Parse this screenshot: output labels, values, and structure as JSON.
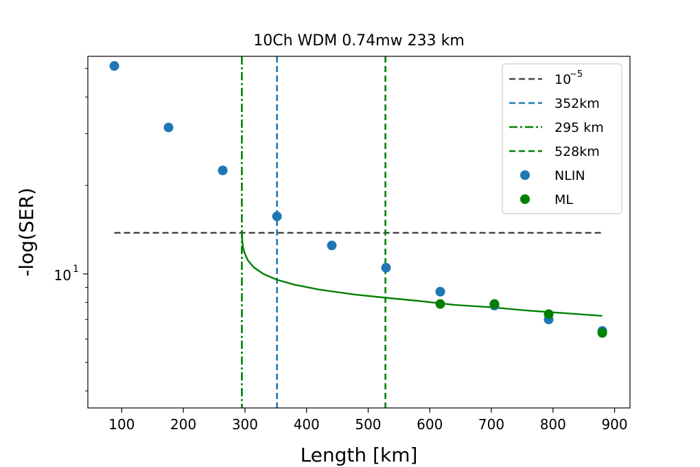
{
  "chart_data": {
    "type": "scatter",
    "title": "10Ch WDM 0.74mw 233 km",
    "xlabel": "Length [km]",
    "ylabel": "-log(SER)",
    "xlim": [
      45,
      925
    ],
    "ylim": [
      3.5,
      55
    ],
    "yscale": "log",
    "x_ticks": [
      100,
      200,
      300,
      400,
      500,
      600,
      700,
      800,
      900
    ],
    "y_major_ticks": [
      {
        "value": 10,
        "base": "10",
        "exp": "1"
      }
    ],
    "y_minor_ticks": [
      4,
      5,
      6,
      7,
      8,
      9,
      20,
      30,
      40,
      50
    ],
    "legend_position": "top-right",
    "series": [
      {
        "name": "NLIN",
        "kind": "scatter",
        "color": "#1f77b4",
        "x": [
          88,
          176,
          264,
          352,
          441,
          529,
          617,
          705,
          793,
          880
        ],
        "y": [
          51,
          31.5,
          22.5,
          15.7,
          12.5,
          10.5,
          8.7,
          7.8,
          7.0,
          6.4
        ]
      },
      {
        "name": "ML",
        "kind": "scatter",
        "color": "#008000",
        "x": [
          617,
          705,
          793,
          880
        ],
        "y": [
          7.9,
          7.9,
          7.3,
          6.3
        ]
      },
      {
        "name": "10^{-5}",
        "label_base": "10",
        "label_exp": "−5",
        "kind": "hline",
        "style": "dashed",
        "color": "#444444",
        "x_range": [
          88,
          880
        ],
        "y": 13.8
      },
      {
        "name": "352km",
        "kind": "vline",
        "style": "dashed",
        "color": "#1f77b4",
        "x": 352
      },
      {
        "name": "295 km",
        "kind": "vline",
        "style": "dashdot",
        "color": "#008000",
        "x": 295
      },
      {
        "name": "528km",
        "kind": "vline",
        "style": "dashed",
        "color": "#008000",
        "x": 528
      },
      {
        "name": "",
        "kind": "curve",
        "color": "#008000",
        "x": [
          295,
          296,
          297,
          300,
          305,
          315,
          330,
          352,
          380,
          420,
          480,
          528,
          580,
          640,
          700,
          760,
          820,
          880
        ],
        "y": [
          13.8,
          12.8,
          12.3,
          11.7,
          11.1,
          10.5,
          10.0,
          9.55,
          9.2,
          8.85,
          8.5,
          8.3,
          8.1,
          7.85,
          7.7,
          7.5,
          7.35,
          7.2
        ]
      }
    ]
  }
}
